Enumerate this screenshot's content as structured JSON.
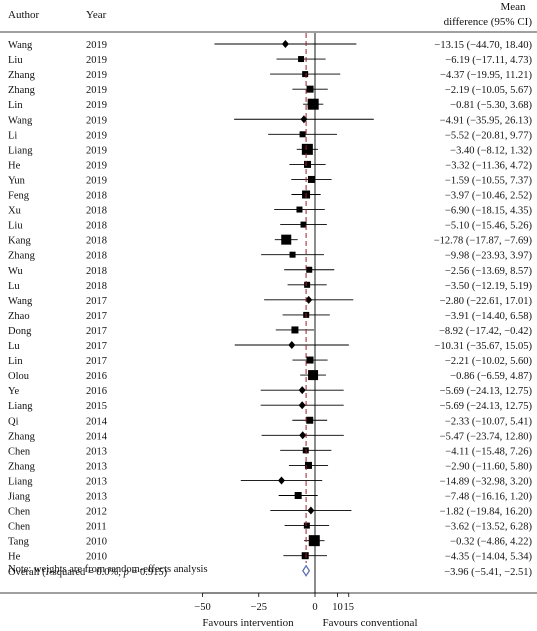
{
  "chart_data": {
    "type": "forest",
    "header": {
      "author": "Author",
      "year": "Year",
      "effect_line1": "Mean",
      "effect_line2": "difference (95% CI)"
    },
    "studies": [
      {
        "author": "Wang",
        "year": "2019",
        "md": -13.15,
        "lo": -44.7,
        "hi": 18.4,
        "label": "−13.15 (−44.70, 18.40)",
        "marker": "diamond",
        "size": 5
      },
      {
        "author": "Liu",
        "year": "2019",
        "md": -6.19,
        "lo": -17.11,
        "hi": 4.73,
        "label": "−6.19 (−17.11, 4.73)",
        "marker": "square",
        "size": 6
      },
      {
        "author": "Zhang",
        "year": "2019",
        "md": -4.37,
        "lo": -19.95,
        "hi": 11.21,
        "label": "−4.37 (−19.95, 11.21)",
        "marker": "square",
        "size": 6
      },
      {
        "author": "Zhang",
        "year": "2019",
        "md": -2.19,
        "lo": -10.05,
        "hi": 5.67,
        "label": "−2.19 (−10.05, 5.67)",
        "marker": "square",
        "size": 7
      },
      {
        "author": "Lin",
        "year": "2019",
        "md": -0.81,
        "lo": -5.3,
        "hi": 3.68,
        "label": "−0.81 (−5.30, 3.68)",
        "marker": "square",
        "size": 11
      },
      {
        "author": "Wang",
        "year": "2019",
        "md": -4.91,
        "lo": -35.95,
        "hi": 26.13,
        "label": "−4.91 (−35.95, 26.13)",
        "marker": "diamond",
        "size": 5
      },
      {
        "author": "Li",
        "year": "2019",
        "md": -5.52,
        "lo": -20.81,
        "hi": 9.77,
        "label": "−5.52 (−20.81, 9.77)",
        "marker": "square",
        "size": 6
      },
      {
        "author": "Liang",
        "year": "2019",
        "md": -3.4,
        "lo": -8.12,
        "hi": 1.32,
        "label": "−3.40 (−8.12, 1.32)",
        "marker": "square",
        "size": 11
      },
      {
        "author": "He",
        "year": "2019",
        "md": -3.32,
        "lo": -11.36,
        "hi": 4.72,
        "label": "−3.32 (−11.36, 4.72)",
        "marker": "square",
        "size": 7
      },
      {
        "author": "Yun",
        "year": "2019",
        "md": -1.59,
        "lo": -10.55,
        "hi": 7.37,
        "label": "−1.59 (−10.55, 7.37)",
        "marker": "square",
        "size": 7
      },
      {
        "author": "Feng",
        "year": "2018",
        "md": -3.97,
        "lo": -10.46,
        "hi": 2.52,
        "label": "−3.97 (−10.46, 2.52)",
        "marker": "square",
        "size": 8
      },
      {
        "author": "Xu",
        "year": "2018",
        "md": -6.9,
        "lo": -18.15,
        "hi": 4.35,
        "label": "−6.90 (−18.15, 4.35)",
        "marker": "square",
        "size": 6
      },
      {
        "author": "Liu",
        "year": "2018",
        "md": -5.1,
        "lo": -15.46,
        "hi": 5.26,
        "label": "−5.10 (−15.46, 5.26)",
        "marker": "square",
        "size": 6
      },
      {
        "author": "Kang",
        "year": "2018",
        "md": -12.78,
        "lo": -17.87,
        "hi": -7.69,
        "label": "−12.78 (−17.87, −7.69)",
        "marker": "square",
        "size": 10
      },
      {
        "author": "Zhang",
        "year": "2018",
        "md": -9.98,
        "lo": -23.93,
        "hi": 3.97,
        "label": "−9.98 (−23.93, 3.97)",
        "marker": "square",
        "size": 6
      },
      {
        "author": "Wu",
        "year": "2018",
        "md": -2.56,
        "lo": -13.69,
        "hi": 8.57,
        "label": "−2.56 (−13.69, 8.57)",
        "marker": "square",
        "size": 6
      },
      {
        "author": "Lu",
        "year": "2018",
        "md": -3.5,
        "lo": -12.19,
        "hi": 5.19,
        "label": "−3.50 (−12.19, 5.19)",
        "marker": "square",
        "size": 6
      },
      {
        "author": "Wang",
        "year": "2017",
        "md": -2.8,
        "lo": -22.61,
        "hi": 17.01,
        "label": "−2.80 (−22.61, 17.01)",
        "marker": "diamond",
        "size": 5
      },
      {
        "author": "Zhao",
        "year": "2017",
        "md": -3.91,
        "lo": -14.4,
        "hi": 6.58,
        "label": "−3.91 (−14.40, 6.58)",
        "marker": "square",
        "size": 6
      },
      {
        "author": "Dong",
        "year": "2017",
        "md": -8.92,
        "lo": -17.42,
        "hi": -0.42,
        "label": "−8.92 (−17.42, −0.42)",
        "marker": "square",
        "size": 7
      },
      {
        "author": "Lu",
        "year": "2017",
        "md": -10.31,
        "lo": -35.67,
        "hi": 15.05,
        "label": "−10.31 (−35.67, 15.05)",
        "marker": "diamond",
        "size": 5
      },
      {
        "author": "Lin",
        "year": "2017",
        "md": -2.21,
        "lo": -10.02,
        "hi": 5.6,
        "label": "−2.21 (−10.02, 5.60)",
        "marker": "square",
        "size": 7
      },
      {
        "author": "Olou",
        "year": "2016",
        "md": -0.86,
        "lo": -6.59,
        "hi": 4.87,
        "label": "−0.86 (−6.59, 4.87)",
        "marker": "square",
        "size": 10
      },
      {
        "author": "Ye",
        "year": "2016",
        "md": -5.69,
        "lo": -24.13,
        "hi": 12.75,
        "label": "−5.69 (−24.13, 12.75)",
        "marker": "diamond",
        "size": 5
      },
      {
        "author": "Liang",
        "year": "2015",
        "md": -5.69,
        "lo": -24.13,
        "hi": 12.75,
        "label": "−5.69 (−24.13, 12.75)",
        "marker": "diamond",
        "size": 5
      },
      {
        "author": "Qi",
        "year": "2014",
        "md": -2.33,
        "lo": -10.07,
        "hi": 5.41,
        "label": "−2.33 (−10.07, 5.41)",
        "marker": "square",
        "size": 7
      },
      {
        "author": "Zhang",
        "year": "2014",
        "md": -5.47,
        "lo": -23.74,
        "hi": 12.8,
        "label": "−5.47 (−23.74, 12.80)",
        "marker": "diamond",
        "size": 5
      },
      {
        "author": "Chen",
        "year": "2013",
        "md": -4.11,
        "lo": -15.48,
        "hi": 7.26,
        "label": "−4.11 (−15.48, 7.26)",
        "marker": "square",
        "size": 6
      },
      {
        "author": "Zhang",
        "year": "2013",
        "md": -2.9,
        "lo": -11.6,
        "hi": 5.8,
        "label": "−2.90 (−11.60, 5.80)",
        "marker": "square",
        "size": 7
      },
      {
        "author": "Liang",
        "year": "2013",
        "md": -14.89,
        "lo": -32.98,
        "hi": 3.2,
        "label": "−14.89 (−32.98, 3.20)",
        "marker": "diamond",
        "size": 5
      },
      {
        "author": "Jiang",
        "year": "2013",
        "md": -7.48,
        "lo": -16.16,
        "hi": 1.2,
        "label": "−7.48 (−16.16, 1.20)",
        "marker": "square",
        "size": 7
      },
      {
        "author": "Chen",
        "year": "2012",
        "md": -1.82,
        "lo": -19.84,
        "hi": 16.2,
        "label": "−1.82 (−19.84, 16.20)",
        "marker": "diamond",
        "size": 5
      },
      {
        "author": "Chen",
        "year": "2011",
        "md": -3.62,
        "lo": -13.52,
        "hi": 6.28,
        "label": "−3.62 (−13.52, 6.28)",
        "marker": "square",
        "size": 6
      },
      {
        "author": "Tang",
        "year": "2010",
        "md": -0.32,
        "lo": -4.86,
        "hi": 4.22,
        "label": "−0.32 (−4.86, 4.22)",
        "marker": "square",
        "size": 11
      },
      {
        "author": "He",
        "year": "2010",
        "md": -4.35,
        "lo": -14.04,
        "hi": 5.34,
        "label": "−4.35 (−14.04, 5.34)",
        "marker": "square",
        "size": 7
      }
    ],
    "overall": {
      "label_text": "Overall (I-squared = 0.0%, p = 0.915)",
      "label_prefix": "Overall (",
      "label_i": "I",
      "label_mid": "-squared = 0.0%, ",
      "label_p": "p",
      "label_suffix": " = 0.915)",
      "md": -3.96,
      "lo": -5.41,
      "hi": -2.51,
      "label": "−3.96 (−5.41, −2.51)"
    },
    "note": "Note: weights are from random-effects analysis",
    "x_ticks": [
      {
        "value": -50,
        "label": "−50"
      },
      {
        "value": -25,
        "label": "−25"
      },
      {
        "value": 0,
        "label": "0"
      },
      {
        "value": 10,
        "label": "10"
      },
      {
        "value": 15,
        "label": "15"
      }
    ],
    "xlim": [
      -50,
      15
    ],
    "favours_left": "Favours intervention",
    "favours_right": "Favours conventional",
    "reference_line": 0,
    "colors": {
      "overall_line": "#a01c32",
      "overall_diamond": "#5b6bb0",
      "marker": "#000000"
    }
  }
}
